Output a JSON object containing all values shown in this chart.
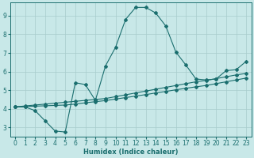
{
  "xlabel": "Humidex (Indice chaleur)",
  "xlim": [
    -0.5,
    23.5
  ],
  "ylim": [
    2.5,
    9.7
  ],
  "yticks": [
    3,
    4,
    5,
    6,
    7,
    8,
    9
  ],
  "xticks": [
    0,
    1,
    2,
    3,
    4,
    5,
    6,
    7,
    8,
    9,
    10,
    11,
    12,
    13,
    14,
    15,
    16,
    17,
    18,
    19,
    20,
    21,
    22,
    23
  ],
  "bg_color": "#c8e8e8",
  "grid_color": "#a8cccc",
  "line_color": "#1a6e6e",
  "line1_x": [
    0,
    1,
    2,
    3,
    4,
    5,
    6,
    7,
    8,
    9,
    10,
    11,
    12,
    13,
    14,
    15,
    16,
    17,
    18,
    19,
    20,
    21,
    22,
    23
  ],
  "line1_y": [
    4.1,
    4.1,
    3.9,
    3.35,
    2.8,
    2.75,
    5.4,
    5.3,
    4.45,
    6.3,
    7.3,
    8.8,
    9.45,
    9.45,
    9.15,
    8.45,
    7.05,
    6.35,
    5.6,
    5.55,
    5.6,
    6.05,
    6.1,
    6.55
  ],
  "line2_x": [
    0,
    1,
    2,
    3,
    4,
    5,
    6,
    7,
    8,
    9,
    10,
    11,
    12,
    13,
    14,
    15,
    16,
    17,
    18,
    19,
    20,
    21,
    22,
    23
  ],
  "line2_y": [
    4.1,
    4.15,
    4.2,
    4.25,
    4.3,
    4.35,
    4.4,
    4.45,
    4.5,
    4.55,
    4.65,
    4.75,
    4.85,
    4.95,
    5.05,
    5.15,
    5.25,
    5.35,
    5.45,
    5.52,
    5.62,
    5.72,
    5.82,
    5.9
  ],
  "line3_x": [
    0,
    1,
    2,
    3,
    4,
    5,
    6,
    7,
    8,
    9,
    10,
    11,
    12,
    13,
    14,
    15,
    16,
    17,
    18,
    19,
    20,
    21,
    22,
    23
  ],
  "line3_y": [
    4.1,
    4.12,
    4.14,
    4.16,
    4.18,
    4.2,
    4.25,
    4.32,
    4.38,
    4.44,
    4.52,
    4.6,
    4.68,
    4.76,
    4.85,
    4.93,
    5.02,
    5.1,
    5.18,
    5.25,
    5.35,
    5.45,
    5.55,
    5.65
  ]
}
